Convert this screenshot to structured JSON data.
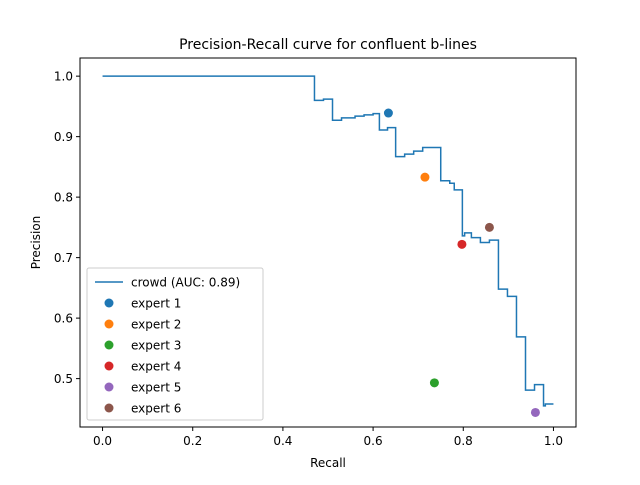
{
  "chart_data": {
    "type": "line",
    "title": "Precision-Recall curve for confluent b-lines",
    "xlabel": "Recall",
    "ylabel": "Precision",
    "xlim": [
      -0.05,
      1.05
    ],
    "ylim": [
      0.42,
      1.03
    ],
    "xticks": [
      0.0,
      0.2,
      0.4,
      0.6,
      0.8,
      1.0
    ],
    "xtick_labels": [
      "0.0",
      "0.2",
      "0.4",
      "0.6",
      "0.8",
      "1.0"
    ],
    "yticks": [
      0.5,
      0.6,
      0.7,
      0.8,
      0.9,
      1.0
    ],
    "ytick_labels": [
      "0.5",
      "0.6",
      "0.7",
      "0.8",
      "0.9",
      "1.0"
    ],
    "grid": false,
    "legend_position": "lower-left",
    "series": [
      {
        "name": "crowd (AUC: 0.89)",
        "kind": "step-line",
        "color": "#1f77b4",
        "points": [
          [
            0.0,
            1.0
          ],
          [
            0.47,
            1.0
          ],
          [
            0.47,
            0.96
          ],
          [
            0.49,
            0.96
          ],
          [
            0.49,
            0.962
          ],
          [
            0.51,
            0.962
          ],
          [
            0.51,
            0.927
          ],
          [
            0.53,
            0.927
          ],
          [
            0.53,
            0.931
          ],
          [
            0.56,
            0.931
          ],
          [
            0.56,
            0.934
          ],
          [
            0.58,
            0.934
          ],
          [
            0.58,
            0.936
          ],
          [
            0.6,
            0.936
          ],
          [
            0.6,
            0.938
          ],
          [
            0.614,
            0.938
          ],
          [
            0.614,
            0.911
          ],
          [
            0.632,
            0.911
          ],
          [
            0.632,
            0.915
          ],
          [
            0.65,
            0.915
          ],
          [
            0.65,
            0.867
          ],
          [
            0.67,
            0.867
          ],
          [
            0.67,
            0.871
          ],
          [
            0.69,
            0.871
          ],
          [
            0.69,
            0.876
          ],
          [
            0.71,
            0.876
          ],
          [
            0.71,
            0.882
          ],
          [
            0.75,
            0.882
          ],
          [
            0.75,
            0.827
          ],
          [
            0.77,
            0.827
          ],
          [
            0.77,
            0.823
          ],
          [
            0.78,
            0.823
          ],
          [
            0.78,
            0.812
          ],
          [
            0.798,
            0.812
          ],
          [
            0.798,
            0.736
          ],
          [
            0.803,
            0.736
          ],
          [
            0.803,
            0.741
          ],
          [
            0.818,
            0.741
          ],
          [
            0.818,
            0.733
          ],
          [
            0.838,
            0.733
          ],
          [
            0.838,
            0.725
          ],
          [
            0.858,
            0.725
          ],
          [
            0.858,
            0.729
          ],
          [
            0.878,
            0.729
          ],
          [
            0.878,
            0.648
          ],
          [
            0.898,
            0.648
          ],
          [
            0.898,
            0.636
          ],
          [
            0.918,
            0.636
          ],
          [
            0.918,
            0.569
          ],
          [
            0.938,
            0.569
          ],
          [
            0.938,
            0.481
          ],
          [
            0.958,
            0.481
          ],
          [
            0.958,
            0.49
          ],
          [
            0.978,
            0.49
          ],
          [
            0.978,
            0.455
          ],
          [
            0.982,
            0.455
          ],
          [
            0.982,
            0.458
          ],
          [
            1.0,
            0.458
          ]
        ]
      },
      {
        "name": "expert 1",
        "kind": "point",
        "color": "#1f77b4",
        "x": 0.634,
        "y": 0.939
      },
      {
        "name": "expert 2",
        "kind": "point",
        "color": "#ff7f0e",
        "x": 0.715,
        "y": 0.833
      },
      {
        "name": "expert 3",
        "kind": "point",
        "color": "#2ca02c",
        "x": 0.736,
        "y": 0.493
      },
      {
        "name": "expert 4",
        "kind": "point",
        "color": "#d62728",
        "x": 0.797,
        "y": 0.722
      },
      {
        "name": "expert 5",
        "kind": "point",
        "color": "#9467bd",
        "x": 0.96,
        "y": 0.444
      },
      {
        "name": "expert 6",
        "kind": "point",
        "color": "#8c564b",
        "x": 0.858,
        "y": 0.75
      }
    ]
  }
}
